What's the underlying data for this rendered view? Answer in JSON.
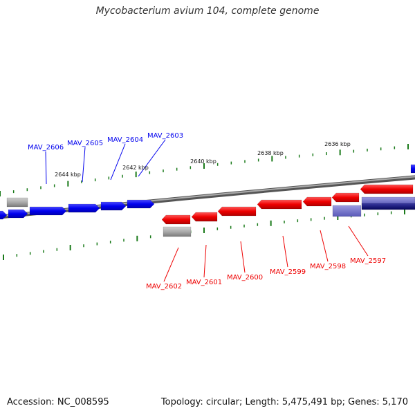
{
  "title": "Mycobacterium avium 104, complete genome",
  "footer": {
    "accession": "Accession: NC_008595",
    "summary": "Topology: circular; Length: 5,475,491 bp; Genes: 5,170"
  },
  "colors": {
    "plus_strand": "#0000ee",
    "minus_strand": "#ee0000",
    "pseudo": "#aaaaaa",
    "rna_light": "#7070cc",
    "rna_dark": "#10107a",
    "backbone": "#777777",
    "tick": "#1a7a1a"
  },
  "ruler": [
    {
      "label": "2644 kbp"
    },
    {
      "label": "2642 kbp"
    },
    {
      "label": "2640 kbp"
    },
    {
      "label": "2638 kbp"
    },
    {
      "label": "2636 kbp"
    }
  ],
  "genes_top": [
    {
      "label": "MAV_2606"
    },
    {
      "label": "MAV_2605"
    },
    {
      "label": "MAV_2604"
    },
    {
      "label": "MAV_2603"
    }
  ],
  "genes_bottom": [
    {
      "label": "MAV_2602"
    },
    {
      "label": "MAV_2601"
    },
    {
      "label": "MAV_2600"
    },
    {
      "label": "MAV_2599"
    },
    {
      "label": "MAV_2598"
    },
    {
      "label": "MAV_2597"
    }
  ]
}
